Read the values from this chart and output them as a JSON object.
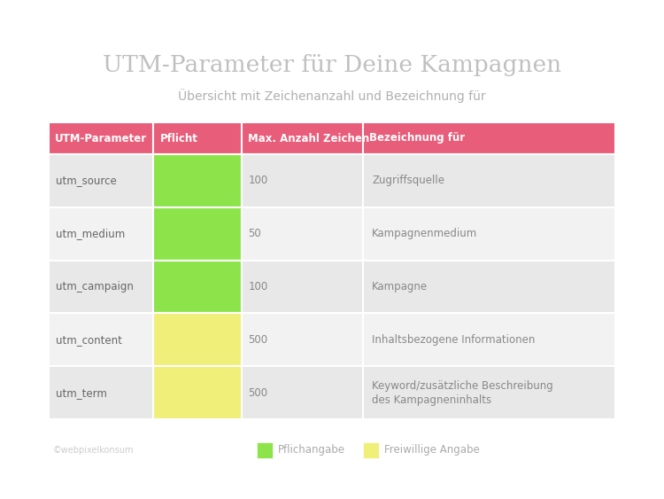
{
  "title": "UTM-Parameter für Deine Kampagnen",
  "subtitle": "Übersicht mit Zeichenanzahl und Bezeichnung für",
  "background_color": "#ffffff",
  "header_color": "#e85d7a",
  "header_text_color": "#ffffff",
  "row_colors": [
    "#e8e8e8",
    "#f2f2f2",
    "#e8e8e8",
    "#f2f2f2",
    "#e8e8e8"
  ],
  "headers": [
    "UTM-Parameter",
    "Pflicht",
    "Max. Anzahl Zeichen",
    "Bezeichnung für"
  ],
  "rows": [
    {
      "param": "utm_source",
      "pflicht_color": "#8ce44a",
      "max_chars": "100",
      "bezeichnung": "Zugriffsquelle"
    },
    {
      "param": "utm_medium",
      "pflicht_color": "#8ce44a",
      "max_chars": "50",
      "bezeichnung": "Kampagnenmedium"
    },
    {
      "param": "utm_campaign",
      "pflicht_color": "#8ce44a",
      "max_chars": "100",
      "bezeichnung": "Kampagne"
    },
    {
      "param": "utm_content",
      "pflicht_color": "#f0ef7a",
      "max_chars": "500",
      "bezeichnung": "Inhaltsbezogene Informationen"
    },
    {
      "param": "utm_term",
      "pflicht_color": "#f0ef7a",
      "max_chars": "500",
      "bezeichnung": "Keyword/zusätzliche Beschreibung\ndes Kampagneninhalts"
    }
  ],
  "legend_pflicht_color": "#8ce44a",
  "legend_freiwillig_color": "#f0ef7a",
  "legend_pflicht_label": "Pflichangabe",
  "legend_freiwillig_label": "Freiwillige Angabe",
  "footer_text": "©webpixelkonsum",
  "param_text_color": "#666666",
  "cell_text_color": "#888888",
  "title_color": "#c0c0c0",
  "subtitle_color": "#b0b0b0"
}
